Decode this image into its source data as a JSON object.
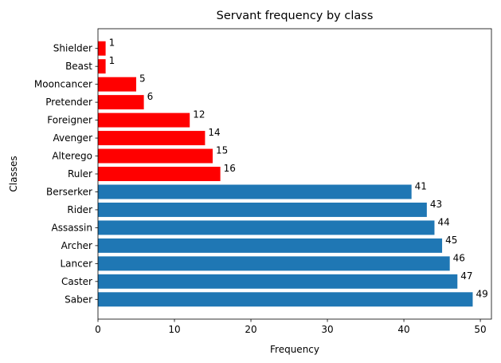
{
  "chart_data": {
    "type": "bar",
    "orientation": "horizontal",
    "title": "Servant frequency by class",
    "xlabel": "Frequency",
    "ylabel": "Classes",
    "xlim": [
      0,
      51.45
    ],
    "xticks": [
      0,
      10,
      20,
      30,
      40,
      50
    ],
    "grid": false,
    "categories": [
      "Saber",
      "Caster",
      "Lancer",
      "Archer",
      "Assassin",
      "Rider",
      "Berserker",
      "Ruler",
      "Alterego",
      "Avenger",
      "Foreigner",
      "Pretender",
      "Mooncancer",
      "Beast",
      "Shielder"
    ],
    "values": [
      49,
      47,
      46,
      45,
      44,
      43,
      41,
      16,
      15,
      14,
      12,
      6,
      5,
      1,
      1
    ],
    "bar_colors": [
      "#1f77b4",
      "#1f77b4",
      "#1f77b4",
      "#1f77b4",
      "#1f77b4",
      "#1f77b4",
      "#1f77b4",
      "#ff0000",
      "#ff0000",
      "#ff0000",
      "#ff0000",
      "#ff0000",
      "#ff0000",
      "#ff0000",
      "#ff0000"
    ]
  }
}
